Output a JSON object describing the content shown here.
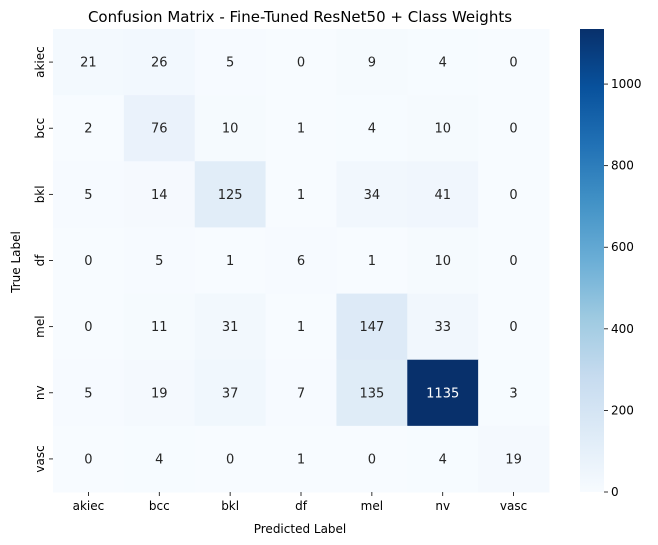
{
  "chart_data": {
    "type": "heatmap",
    "title": "Confusion Matrix - Fine-Tuned ResNet50 + Class Weights",
    "xlabel": "Predicted Label",
    "ylabel": "True Label",
    "x_categories": [
      "akiec",
      "bcc",
      "bkl",
      "df",
      "mel",
      "nv",
      "vasc"
    ],
    "y_categories": [
      "akiec",
      "bcc",
      "bkl",
      "df",
      "mel",
      "nv",
      "vasc"
    ],
    "values": [
      [
        21,
        26,
        5,
        0,
        9,
        4,
        0
      ],
      [
        2,
        76,
        10,
        1,
        4,
        10,
        0
      ],
      [
        5,
        14,
        125,
        1,
        34,
        41,
        0
      ],
      [
        0,
        5,
        1,
        6,
        1,
        10,
        0
      ],
      [
        0,
        11,
        31,
        1,
        147,
        33,
        0
      ],
      [
        5,
        19,
        37,
        7,
        135,
        1135,
        3
      ],
      [
        0,
        4,
        0,
        1,
        0,
        4,
        19
      ]
    ],
    "colormap": "Blues",
    "colorbar": {
      "vmin": 0,
      "vmax": 1135,
      "ticks": [
        0,
        200,
        400,
        600,
        800,
        1000
      ]
    }
  }
}
